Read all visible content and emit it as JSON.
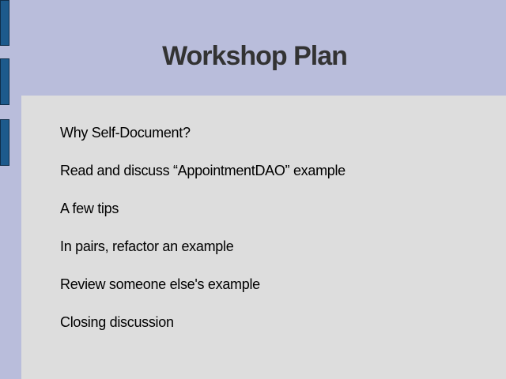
{
  "slide": {
    "title": "Workshop Plan",
    "items": [
      "Why Self-Document?",
      "Read and discuss “AppointmentDAO” example",
      "A few tips",
      "In pairs, refactor an example",
      "Review someone else's example",
      "Closing discussion"
    ]
  },
  "colors": {
    "background": "#b9bddb",
    "content_panel": "#dddddd",
    "side_bars": "#1d5a8c",
    "title_text": "#333333"
  }
}
